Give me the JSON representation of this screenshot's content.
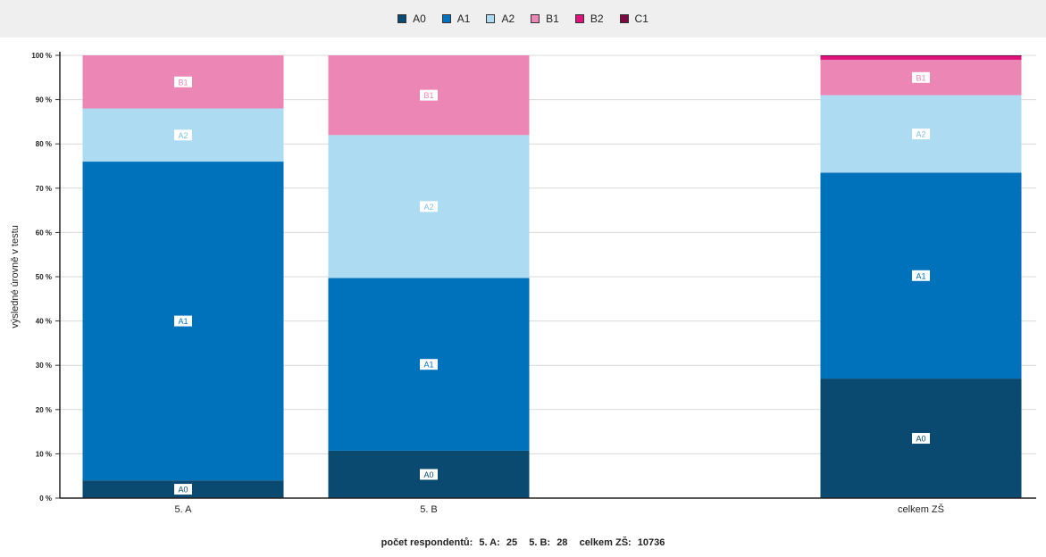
{
  "legend": [
    {
      "name": "A0",
      "color": "#0a4a70"
    },
    {
      "name": "A1",
      "color": "#0072bc"
    },
    {
      "name": "A2",
      "color": "#addcf2"
    },
    {
      "name": "B1",
      "color": "#ec86b4"
    },
    {
      "name": "B2",
      "color": "#dd137b"
    },
    {
      "name": "C1",
      "color": "#7a0a3f"
    }
  ],
  "chart_data": {
    "type": "bar",
    "stacked": true,
    "ylabel": "výsledné úrovně v testu",
    "ylim": [
      0,
      100
    ],
    "yticks": [
      "0 %",
      "10 %",
      "20 %",
      "30 %",
      "40 %",
      "50 %",
      "60 %",
      "70 %",
      "80 %",
      "90 %",
      "100 %"
    ],
    "categories": [
      "5. A",
      "5. B",
      "celkem ZŠ"
    ],
    "series": [
      {
        "name": "A0",
        "color": "#0a4a70",
        "values": [
          4,
          10.7,
          27
        ]
      },
      {
        "name": "A1",
        "color": "#0072bc",
        "values": [
          72,
          39,
          46.5
        ]
      },
      {
        "name": "A2",
        "color": "#addcf2",
        "values": [
          12,
          32.3,
          17.5
        ]
      },
      {
        "name": "B1",
        "color": "#ec86b4",
        "values": [
          12,
          18,
          8
        ]
      },
      {
        "name": "B2",
        "color": "#dd137b",
        "values": [
          0,
          0,
          0.8
        ]
      },
      {
        "name": "C1",
        "color": "#7a0a3f",
        "values": [
          0,
          0,
          0.2
        ]
      }
    ],
    "grid": true,
    "legend_position": "top"
  },
  "footer": {
    "label": "počet respondentů:",
    "items": [
      {
        "label": "5. A:",
        "value": "25"
      },
      {
        "label": "5. B:",
        "value": "28"
      },
      {
        "label": "celkem ZŠ:",
        "value": "10736"
      }
    ]
  }
}
